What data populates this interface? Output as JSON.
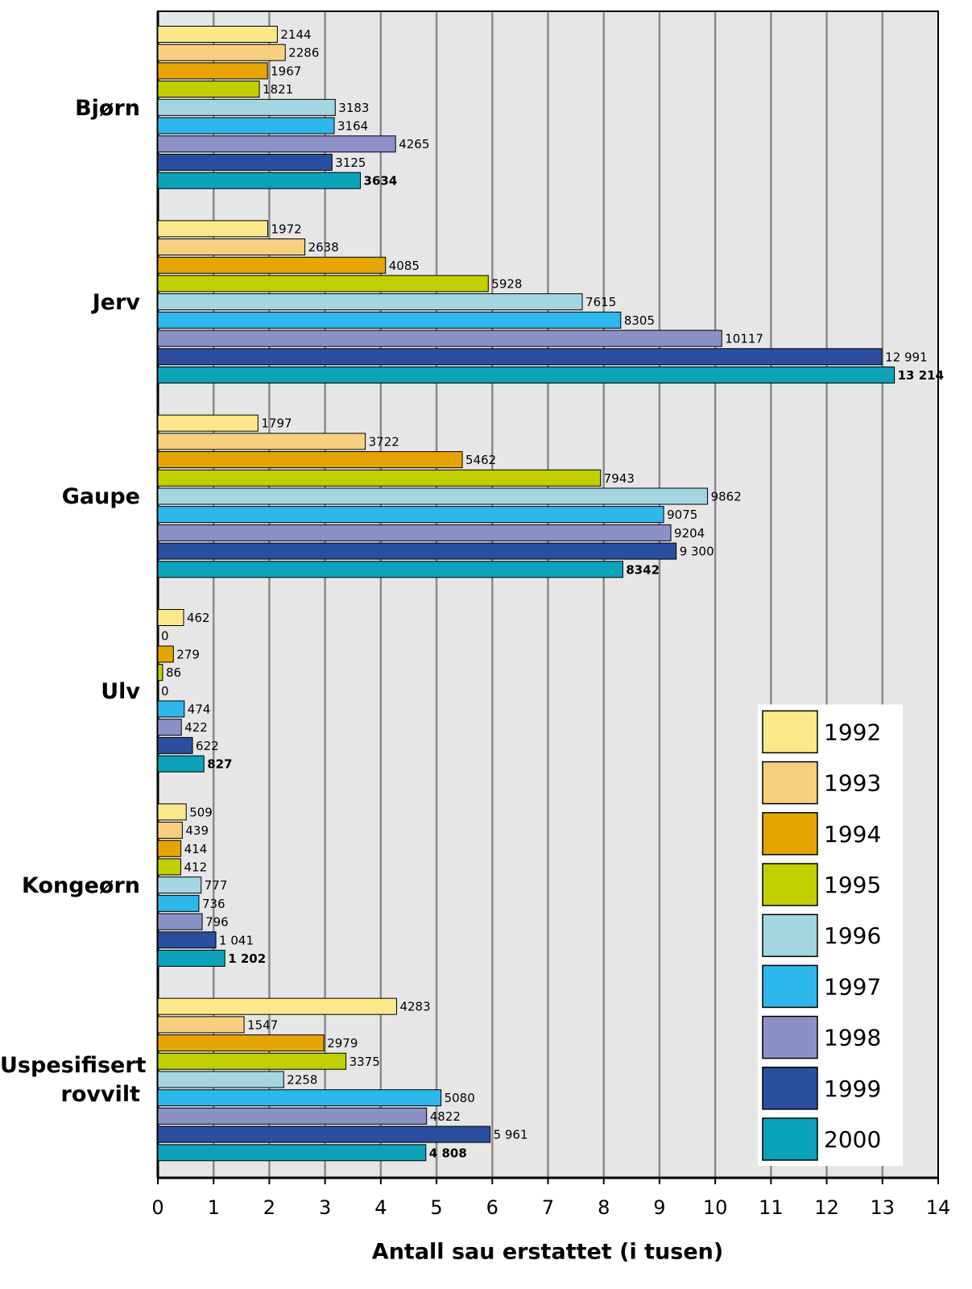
{
  "chart_data": {
    "type": "bar",
    "orientation": "horizontal",
    "xlabel": "Antall sau erstattet (i tusen)",
    "categories": [
      "Bjørn",
      "Jerv",
      "Gaupe",
      "Ulv",
      "Kongeørn",
      "Uspesifisert rovvilt"
    ],
    "xlim": [
      0,
      14
    ],
    "xticks": [
      0,
      1,
      2,
      3,
      4,
      5,
      6,
      7,
      8,
      9,
      10,
      11,
      12,
      13,
      14
    ],
    "grid": true,
    "legend": "lower right",
    "series": [
      {
        "name": "1992",
        "color": "#fbe88a",
        "values": [
          2.144,
          1.972,
          1.797,
          0.462,
          0.509,
          4.283
        ],
        "value_labels": [
          "2144",
          "1972",
          "1797",
          "462",
          "509",
          "4283"
        ]
      },
      {
        "name": "1993",
        "color": "#f8cf7e",
        "values": [
          2.286,
          2.638,
          3.722,
          0,
          0.439,
          1.547
        ],
        "value_labels": [
          "2286",
          "2638",
          "3722",
          "0",
          "439",
          "1547"
        ]
      },
      {
        "name": "1994",
        "color": "#e5a400",
        "values": [
          1.967,
          4.085,
          5.462,
          0.279,
          0.414,
          2.979
        ],
        "value_labels": [
          "1967",
          "4085",
          "5462",
          "279",
          "414",
          "2979"
        ]
      },
      {
        "name": "1995",
        "color": "#c1cf00",
        "values": [
          1.821,
          5.928,
          7.943,
          0.086,
          0.412,
          3.375
        ],
        "value_labels": [
          "1821",
          "5928",
          "7943",
          "86",
          "412",
          "3375"
        ]
      },
      {
        "name": "1996",
        "color": "#a3d6e0",
        "values": [
          3.183,
          7.615,
          9.862,
          0,
          0.777,
          2.258
        ],
        "value_labels": [
          "3183",
          "7615",
          "9862",
          "0",
          "777",
          "2258"
        ]
      },
      {
        "name": "1997",
        "color": "#2eb7ea",
        "values": [
          3.164,
          8.305,
          9.075,
          0.474,
          0.736,
          5.08
        ],
        "value_labels": [
          "3164",
          "8305",
          "9075",
          "474",
          "736",
          "5080"
        ]
      },
      {
        "name": "1998",
        "color": "#8b90c6",
        "values": [
          4.265,
          10.117,
          9.204,
          0.422,
          0.796,
          4.822
        ],
        "value_labels": [
          "4265",
          "10117",
          "9204",
          "422",
          "796",
          "4822"
        ]
      },
      {
        "name": "1999",
        "color": "#2a4f9e",
        "values": [
          3.125,
          12.991,
          9.3,
          0.622,
          1.041,
          5.961
        ],
        "value_labels": [
          "3125",
          "12 991",
          "9 300",
          "622",
          "1 041",
          "5 961"
        ]
      },
      {
        "name": "2000",
        "color": "#0aa3ba",
        "values": [
          3.634,
          13.214,
          8.342,
          0.827,
          1.202,
          4.808
        ],
        "value_labels": [
          "3634",
          "13 214",
          "8342",
          "827",
          "1 202",
          "4 808"
        ]
      }
    ]
  }
}
